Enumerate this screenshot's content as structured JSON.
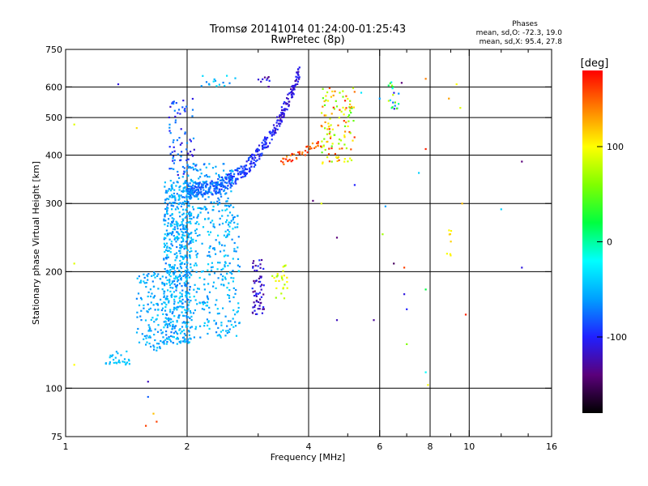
{
  "chart_data": {
    "type": "scatter",
    "title": "Tromsø 20141014 01:24:00-01:25:43",
    "subtitle": "RwPretec (8p)",
    "xlabel": "Frequency [MHz]",
    "ylabel": "Stationary phase Virtual Height [km]",
    "x_scale": "log",
    "y_scale": "log",
    "xlim": [
      1,
      16
    ],
    "ylim": [
      75,
      750
    ],
    "x_ticks": [
      1,
      2,
      4,
      6,
      8,
      10,
      16
    ],
    "x_tick_labels": [
      "1",
      "2",
      "4",
      "6",
      "8",
      "10",
      "16"
    ],
    "x_minor_ticks": [
      3,
      5,
      7,
      9,
      12,
      14
    ],
    "y_ticks": [
      75,
      100,
      200,
      300,
      400,
      500,
      600,
      750
    ],
    "y_tick_labels": [
      "75",
      "100",
      "200",
      "300",
      "400",
      "500",
      "600",
      "750"
    ],
    "grid_x": [
      2,
      4,
      6,
      8,
      10
    ],
    "grid_y": [
      100,
      200,
      300,
      400,
      500,
      600
    ],
    "grid": true,
    "stats": {
      "title": "Phases",
      "line1": "mean, sd,O: -72.3, 19.0",
      "line2": "mean, sd,X:  95.4, 27.8"
    },
    "colorbar": {
      "label": "[deg]",
      "range": [
        -180,
        180
      ],
      "ticks": [
        100,
        0,
        -100
      ],
      "tick_labels": [
        "100",
        "0",
        "-100"
      ],
      "colormap": [
        "#000000",
        "#5a007a",
        "#2020ff",
        "#00a0ff",
        "#00ffff",
        "#00ff40",
        "#80ff00",
        "#ffff00",
        "#ff8000",
        "#ff0000"
      ]
    },
    "clusters": [
      {
        "f": [
          1.75,
          2.05
        ],
        "h": [
          130,
          345
        ],
        "phase": [
          -75,
          -35
        ],
        "n": 620
      },
      {
        "f": [
          2.05,
          2.7
        ],
        "h": [
          135,
          300
        ],
        "phase": [
          -70,
          -35
        ],
        "n": 280
      },
      {
        "f": [
          1.5,
          1.75
        ],
        "h": [
          125,
          200
        ],
        "phase": [
          -70,
          -40
        ],
        "n": 120
      },
      {
        "f": [
          1.8,
          2.1
        ],
        "h": [
          340,
          560
        ],
        "phase": [
          -120,
          -60
        ],
        "n": 80
      },
      {
        "f": [
          1.95,
          2.6
        ],
        "h": [
          300,
          380
        ],
        "phase": [
          -75,
          -45
        ],
        "n": 120
      },
      {
        "f": [
          1.25,
          1.45
        ],
        "h": [
          115,
          125
        ],
        "phase": [
          -55,
          -40
        ],
        "n": 30
      },
      {
        "f": [
          2.9,
          3.1
        ],
        "h": [
          155,
          215
        ],
        "phase": [
          -140,
          -90
        ],
        "n": 60
      },
      {
        "f": [
          3.25,
          3.55
        ],
        "h": [
          170,
          210
        ],
        "phase": [
          60,
          110
        ],
        "n": 25
      },
      {
        "f": [
          2.1,
          2.7
        ],
        "h": [
          600,
          650
        ],
        "phase": [
          -70,
          -30
        ],
        "n": 15
      },
      {
        "f": [
          3.0,
          3.2
        ],
        "h": [
          600,
          640
        ],
        "phase": [
          -140,
          -90
        ],
        "n": 10
      },
      {
        "f": [
          4.3,
          5.2
        ],
        "h": [
          380,
          600
        ],
        "phase": [
          40,
          170
        ],
        "n": 120
      },
      {
        "f": [
          6.3,
          6.7
        ],
        "h": [
          520,
          620
        ],
        "phase": [
          -130,
          110
        ],
        "n": 20
      },
      {
        "f": [
          8.8,
          9.1
        ],
        "h": [
          220,
          260
        ],
        "phase": [
          95,
          115
        ],
        "n": 8
      }
    ],
    "arc": {
      "f_start": 2.0,
      "f_end": 3.8,
      "h_start": 325,
      "h_end": 660,
      "phase_start": -70,
      "phase_end": -115,
      "n": 420
    },
    "x_trace": {
      "f_start": 3.4,
      "f_end": 4.3,
      "h_start": 380,
      "h_end": 430,
      "phase": [
        130,
        175
      ],
      "n": 40
    },
    "scattered_points": [
      [
        1.05,
        480,
        90
      ],
      [
        1.5,
        470,
        110
      ],
      [
        1.35,
        610,
        -110
      ],
      [
        1.05,
        210,
        90
      ],
      [
        1.05,
        115,
        100
      ],
      [
        1.58,
        80,
        160
      ],
      [
        1.65,
        86,
        120
      ],
      [
        1.68,
        82,
        160
      ],
      [
        1.6,
        104,
        -120
      ],
      [
        1.6,
        95,
        -80
      ],
      [
        7.8,
        415,
        170
      ],
      [
        7.5,
        360,
        -40
      ],
      [
        7.8,
        180,
        20
      ],
      [
        7.8,
        110,
        -20
      ],
      [
        7.9,
        102,
        100
      ],
      [
        9.8,
        155,
        170
      ],
      [
        12.0,
        290,
        -40
      ],
      [
        13.5,
        385,
        -140
      ],
      [
        13.5,
        205,
        -110
      ],
      [
        6.2,
        295,
        -60
      ],
      [
        6.1,
        250,
        70
      ],
      [
        6.5,
        210,
        -150
      ],
      [
        6.9,
        205,
        160
      ],
      [
        6.9,
        175,
        -110
      ],
      [
        7.0,
        160,
        -100
      ],
      [
        7.0,
        130,
        60
      ],
      [
        5.8,
        150,
        -130
      ],
      [
        4.7,
        150,
        -120
      ],
      [
        4.7,
        245,
        -140
      ],
      [
        4.1,
        305,
        -140
      ],
      [
        4.3,
        300,
        90
      ],
      [
        5.2,
        335,
        -100
      ],
      [
        5.4,
        580,
        -30
      ],
      [
        6.0,
        560,
        -60
      ],
      [
        6.8,
        615,
        -140
      ],
      [
        7.8,
        630,
        140
      ],
      [
        8.9,
        560,
        130
      ],
      [
        9.5,
        530,
        90
      ],
      [
        9.6,
        300,
        120
      ],
      [
        9.3,
        610,
        100
      ]
    ]
  }
}
